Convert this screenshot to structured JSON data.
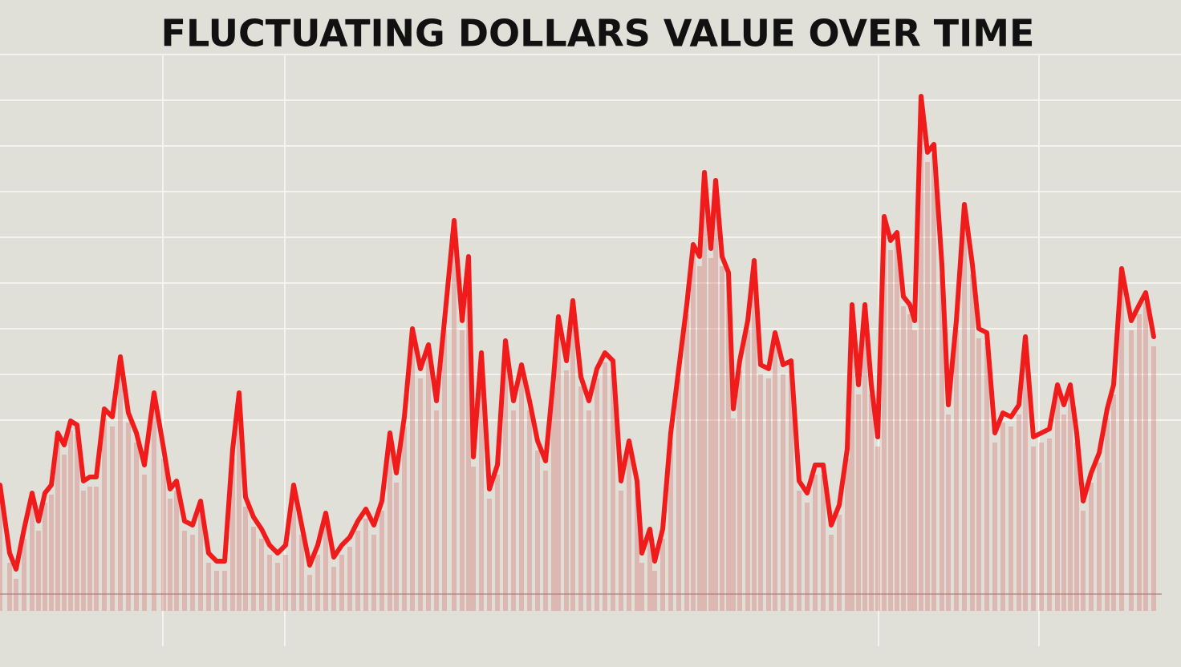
{
  "chart_data": {
    "type": "line",
    "title": "FLUCTUATING DOLLARS VALUE OVER TIME",
    "x": [
      0,
      12,
      20,
      30,
      40,
      48,
      56,
      64,
      72,
      80,
      88,
      96,
      104,
      112,
      120,
      130,
      140,
      150,
      160,
      170,
      180,
      192,
      204,
      212,
      220,
      230,
      240,
      250,
      260,
      270,
      280,
      290,
      298,
      306,
      316,
      326,
      336,
      346,
      356,
      366,
      376,
      386,
      396,
      406,
      416,
      426,
      436,
      446,
      456,
      466,
      476,
      486,
      494,
      504,
      514,
      524,
      534,
      544,
      554,
      566,
      576,
      584,
      590,
      600,
      610,
      620,
      630,
      640,
      650,
      660,
      670,
      680,
      690,
      696,
      706,
      714,
      724,
      734,
      744,
      754,
      764,
      774,
      784,
      794,
      800,
      810,
      816,
      826,
      836,
      846,
      856,
      864,
      872,
      878,
      886,
      892,
      900,
      908,
      914,
      922,
      932,
      940,
      948,
      958,
      966,
      976,
      986,
      996,
      1006,
      1016,
      1026,
      1036,
      1046,
      1056,
      1062,
      1070,
      1078,
      1086,
      1094,
      1102,
      1110,
      1118,
      1126,
      1134,
      1140,
      1148,
      1156,
      1164,
      1174,
      1182,
      1192,
      1202,
      1212,
      1220,
      1230,
      1240,
      1250,
      1260,
      1270,
      1278,
      1288,
      1298,
      1308,
      1318,
      1326,
      1334,
      1342,
      1350,
      1360,
      1370,
      1380,
      1388,
      1398,
      1410,
      1420,
      1428,
      1438
    ],
    "series": [
      {
        "color": "#f01c1c",
        "values": [
          157,
          72,
          52,
          102,
          147,
          112,
          147,
          157,
          222,
          207,
          237,
          232,
          162,
          167,
          167,
          252,
          242,
          317,
          247,
          222,
          182,
          272,
          202,
          152,
          162,
          112,
          107,
          137,
          72,
          62,
          62,
          202,
          272,
          142,
          117,
          102,
          82,
          72,
          82,
          157,
          107,
          57,
          82,
          122,
          67,
          82,
          92,
          112,
          127,
          107,
          137,
          222,
          172,
          242,
          352,
          302,
          332,
          262,
          362,
          487,
          362,
          442,
          192,
          322,
          152,
          182,
          337,
          262,
          307,
          262,
          212,
          187,
          292,
          367,
          312,
          387,
          292,
          262,
          302,
          322,
          312,
          162,
          212,
          162,
          72,
          102,
          62,
          102,
          222,
          302,
          382,
          457,
          442,
          547,
          452,
          537,
          442,
          422,
          252,
          312,
          362,
          437,
          307,
          302,
          347,
          307,
          312,
          162,
          147,
          182,
          182,
          107,
          132,
          202,
          382,
          282,
          382,
          282,
          217,
          492,
          462,
          472,
          392,
          382,
          362,
          642,
          572,
          582,
          432,
          257,
          362,
          507,
          432,
          352,
          347,
          222,
          247,
          242,
          257,
          342,
          217,
          222,
          227,
          282,
          257,
          282,
          222,
          137,
          172,
          197,
          252,
          282,
          427,
          362,
          382,
          397,
          342
        ]
      }
    ],
    "xlim": [
      0,
      1440
    ],
    "ylim": [
      0,
      694
    ]
  }
}
